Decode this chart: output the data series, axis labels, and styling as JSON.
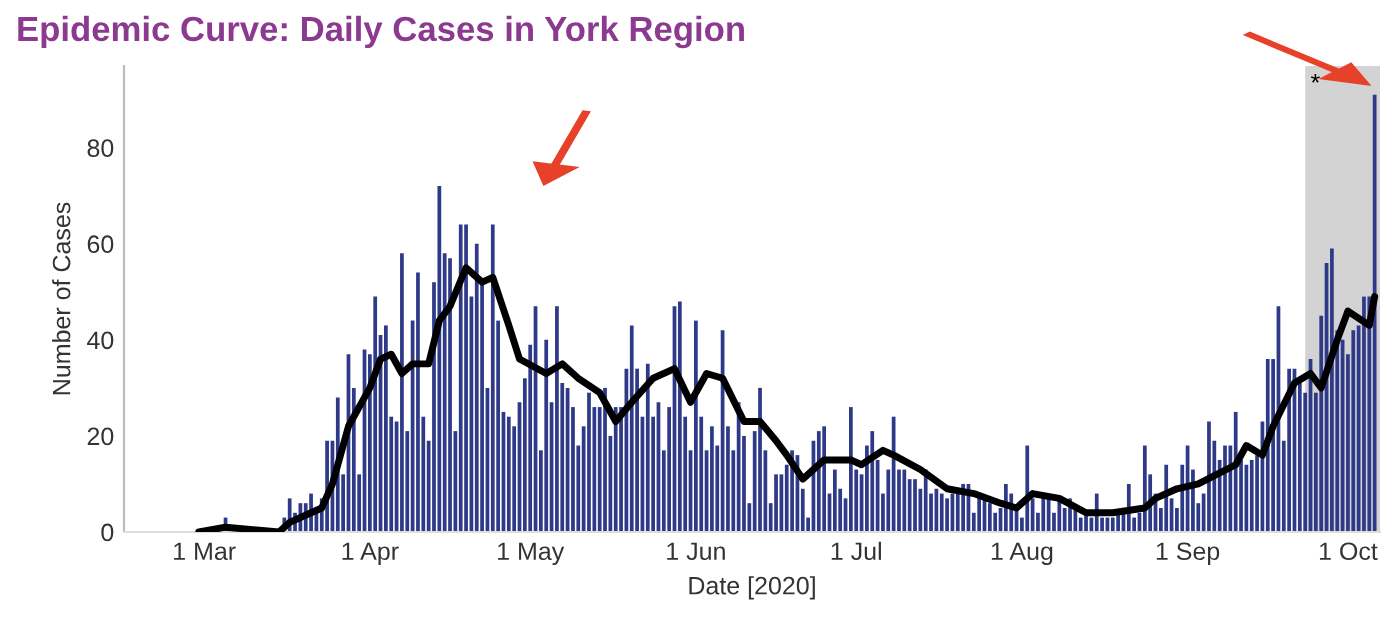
{
  "chart_data": {
    "type": "bar",
    "title": "Epidemic Curve: Daily Cases in York Region",
    "xlabel": "Date [2020]",
    "ylabel": "Number of Cases",
    "xlim": [
      "2020-02-15",
      "2020-10-07"
    ],
    "ylim": [
      0,
      97
    ],
    "yticks": [
      0,
      20,
      40,
      60,
      80
    ],
    "xticks": [
      {
        "value": "2020-03-01",
        "label": "1 Mar"
      },
      {
        "value": "2020-04-01",
        "label": "1 Apr"
      },
      {
        "value": "2020-05-01",
        "label": "1 May"
      },
      {
        "value": "2020-06-01",
        "label": "1 Jun"
      },
      {
        "value": "2020-07-01",
        "label": "1 Jul"
      },
      {
        "value": "2020-08-01",
        "label": "1 Aug"
      },
      {
        "value": "2020-09-01",
        "label": "1 Sep"
      },
      {
        "value": "2020-10-01",
        "label": "1 Oct"
      }
    ],
    "grid": false,
    "legend": false,
    "bands": [
      {
        "axis": "x",
        "from": "2020-09-23",
        "to": "2020-10-07",
        "label": "*",
        "color": "#d3d3d3"
      }
    ],
    "series": [
      {
        "color": "#2e3a87",
        "x": [
          "2020-02-28",
          "2020-02-29",
          "2020-03-01",
          "2020-03-02",
          "2020-03-03",
          "2020-03-04",
          "2020-03-05",
          "2020-03-06",
          "2020-03-07",
          "2020-03-08",
          "2020-03-09",
          "2020-03-10",
          "2020-03-11",
          "2020-03-12",
          "2020-03-13",
          "2020-03-14",
          "2020-03-15",
          "2020-03-16",
          "2020-03-17",
          "2020-03-18",
          "2020-03-19",
          "2020-03-20",
          "2020-03-21",
          "2020-03-22",
          "2020-03-23",
          "2020-03-24",
          "2020-03-25",
          "2020-03-26",
          "2020-03-27",
          "2020-03-28",
          "2020-03-29",
          "2020-03-30",
          "2020-03-31",
          "2020-04-01",
          "2020-04-02",
          "2020-04-03",
          "2020-04-04",
          "2020-04-05",
          "2020-04-06",
          "2020-04-07",
          "2020-04-08",
          "2020-04-09",
          "2020-04-10",
          "2020-04-11",
          "2020-04-12",
          "2020-04-13",
          "2020-04-14",
          "2020-04-15",
          "2020-04-16",
          "2020-04-17",
          "2020-04-18",
          "2020-04-19",
          "2020-04-20",
          "2020-04-21",
          "2020-04-22",
          "2020-04-23",
          "2020-04-24",
          "2020-04-25",
          "2020-04-26",
          "2020-04-27",
          "2020-04-28",
          "2020-04-29",
          "2020-04-30",
          "2020-05-01",
          "2020-05-02",
          "2020-05-03",
          "2020-05-04",
          "2020-05-05",
          "2020-05-06",
          "2020-05-07",
          "2020-05-08",
          "2020-05-09",
          "2020-05-10",
          "2020-05-11",
          "2020-05-12",
          "2020-05-13",
          "2020-05-14",
          "2020-05-15",
          "2020-05-16",
          "2020-05-17",
          "2020-05-18",
          "2020-05-19",
          "2020-05-20",
          "2020-05-21",
          "2020-05-22",
          "2020-05-23",
          "2020-05-24",
          "2020-05-25",
          "2020-05-26",
          "2020-05-27",
          "2020-05-28",
          "2020-05-29",
          "2020-05-30",
          "2020-05-31",
          "2020-06-01",
          "2020-06-02",
          "2020-06-03",
          "2020-06-04",
          "2020-06-05",
          "2020-06-06",
          "2020-06-07",
          "2020-06-08",
          "2020-06-09",
          "2020-06-10",
          "2020-06-11",
          "2020-06-12",
          "2020-06-13",
          "2020-06-14",
          "2020-06-15",
          "2020-06-16",
          "2020-06-17",
          "2020-06-18",
          "2020-06-19",
          "2020-06-20",
          "2020-06-21",
          "2020-06-22",
          "2020-06-23",
          "2020-06-24",
          "2020-06-25",
          "2020-06-26",
          "2020-06-27",
          "2020-06-28",
          "2020-06-29",
          "2020-06-30",
          "2020-07-01",
          "2020-07-02",
          "2020-07-03",
          "2020-07-04",
          "2020-07-05",
          "2020-07-06",
          "2020-07-07",
          "2020-07-08",
          "2020-07-09",
          "2020-07-10",
          "2020-07-11",
          "2020-07-12",
          "2020-07-13",
          "2020-07-14",
          "2020-07-15",
          "2020-07-16",
          "2020-07-17",
          "2020-07-18",
          "2020-07-19",
          "2020-07-20",
          "2020-07-21",
          "2020-07-22",
          "2020-07-23",
          "2020-07-24",
          "2020-07-25",
          "2020-07-26",
          "2020-07-27",
          "2020-07-28",
          "2020-07-29",
          "2020-07-30",
          "2020-07-31",
          "2020-08-01",
          "2020-08-02",
          "2020-08-03",
          "2020-08-04",
          "2020-08-05",
          "2020-08-06",
          "2020-08-07",
          "2020-08-08",
          "2020-08-09",
          "2020-08-10",
          "2020-08-11",
          "2020-08-12",
          "2020-08-13",
          "2020-08-14",
          "2020-08-15",
          "2020-08-16",
          "2020-08-17",
          "2020-08-18",
          "2020-08-19",
          "2020-08-20",
          "2020-08-21",
          "2020-08-22",
          "2020-08-23",
          "2020-08-24",
          "2020-08-25",
          "2020-08-26",
          "2020-08-27",
          "2020-08-28",
          "2020-08-29",
          "2020-08-30",
          "2020-08-31",
          "2020-09-01",
          "2020-09-02",
          "2020-09-03",
          "2020-09-04",
          "2020-09-05",
          "2020-09-06",
          "2020-09-07",
          "2020-09-08",
          "2020-09-09",
          "2020-09-10",
          "2020-09-11",
          "2020-09-12",
          "2020-09-13",
          "2020-09-14",
          "2020-09-15",
          "2020-09-16",
          "2020-09-17",
          "2020-09-18",
          "2020-09-19",
          "2020-09-20",
          "2020-09-21",
          "2020-09-22",
          "2020-09-23",
          "2020-09-24",
          "2020-09-25",
          "2020-09-26",
          "2020-09-27",
          "2020-09-28",
          "2020-09-29",
          "2020-09-30",
          "2020-10-01",
          "2020-10-02",
          "2020-10-03",
          "2020-10-04",
          "2020-10-05",
          "2020-10-06"
        ],
        "values": [
          0,
          0,
          0,
          0,
          0,
          0,
          3,
          0,
          0,
          0,
          0,
          0,
          0,
          0,
          0,
          0,
          0,
          3,
          7,
          4,
          6,
          6,
          8,
          4,
          7,
          19,
          19,
          28,
          12,
          37,
          30,
          12,
          38,
          37,
          49,
          41,
          43,
          24,
          23,
          58,
          21,
          44,
          54,
          24,
          19,
          52,
          72,
          58,
          57,
          21,
          64,
          64,
          49,
          60,
          52,
          30,
          64,
          44,
          25,
          24,
          22,
          27,
          32,
          39,
          47,
          17,
          40,
          27,
          47,
          31,
          30,
          26,
          18,
          22,
          29,
          26,
          26,
          30,
          20,
          26,
          26,
          34,
          43,
          34,
          24,
          35,
          24,
          27,
          17,
          26,
          47,
          48,
          24,
          17,
          44,
          24,
          17,
          22,
          18,
          42,
          22,
          17,
          27,
          20,
          6,
          21,
          30,
          17,
          6,
          12,
          12,
          14,
          17,
          16,
          9,
          3,
          19,
          21,
          22,
          8,
          13,
          9,
          7,
          26,
          13,
          12,
          18,
          21,
          15,
          8,
          13,
          24,
          13,
          13,
          11,
          11,
          9,
          13,
          8,
          9,
          8,
          7,
          8,
          8,
          10,
          10,
          4,
          8,
          7,
          6,
          4,
          5,
          10,
          8,
          5,
          3,
          18,
          7,
          4,
          8,
          7,
          4,
          7,
          5,
          7,
          5,
          3,
          4,
          3,
          8,
          3,
          3,
          3,
          4,
          4,
          10,
          3,
          4,
          18,
          12,
          8,
          5,
          14,
          7,
          5,
          14,
          18,
          13,
          6,
          8,
          23,
          19,
          15,
          18,
          18,
          25,
          15,
          14,
          15,
          16,
          23,
          36,
          36,
          47,
          19,
          34,
          34,
          31,
          29,
          36,
          29,
          45,
          56,
          59,
          42,
          40,
          37,
          42,
          43,
          49,
          49,
          91
        ]
      },
      {
        "type": "line",
        "color": "#000000",
        "x": [
          "2020-02-29",
          "2020-03-05",
          "2020-03-15",
          "2020-03-17",
          "2020-03-21",
          "2020-03-23",
          "2020-03-25",
          "2020-03-28",
          "2020-04-01",
          "2020-04-03",
          "2020-04-05",
          "2020-04-07",
          "2020-04-09",
          "2020-04-12",
          "2020-04-14",
          "2020-04-16",
          "2020-04-19",
          "2020-04-22",
          "2020-04-24",
          "2020-04-27",
          "2020-04-29",
          "2020-05-04",
          "2020-05-07",
          "2020-05-10",
          "2020-05-14",
          "2020-05-17",
          "2020-05-20",
          "2020-05-24",
          "2020-05-28",
          "2020-05-31",
          "2020-06-03",
          "2020-06-06",
          "2020-06-10",
          "2020-06-13",
          "2020-06-16",
          "2020-06-18",
          "2020-06-21",
          "2020-06-25",
          "2020-06-30",
          "2020-07-02",
          "2020-07-06",
          "2020-07-08",
          "2020-07-13",
          "2020-07-18",
          "2020-07-23",
          "2020-07-28",
          "2020-07-31",
          "2020-08-03",
          "2020-08-08",
          "2020-08-13",
          "2020-08-18",
          "2020-08-24",
          "2020-08-26",
          "2020-08-30",
          "2020-09-03",
          "2020-09-10",
          "2020-09-12",
          "2020-09-15",
          "2020-09-17",
          "2020-09-21",
          "2020-09-24",
          "2020-09-26",
          "2020-09-29",
          "2020-10-01",
          "2020-10-05",
          "2020-10-06"
        ],
        "values": [
          0,
          1,
          0,
          2,
          4,
          5,
          10,
          22,
          30,
          36,
          37,
          33,
          35,
          35,
          44,
          47,
          55,
          52,
          53,
          43,
          36,
          33,
          35,
          32,
          29,
          23,
          27,
          32,
          34,
          27,
          33,
          32,
          23,
          23,
          19,
          16,
          11,
          15,
          15,
          14,
          17,
          16,
          13,
          9,
          8,
          6,
          5,
          8,
          7,
          4,
          4,
          5,
          7,
          9,
          10,
          14,
          18,
          16,
          22,
          31,
          33,
          30,
          40,
          46,
          43,
          49
        ]
      }
    ]
  }
}
